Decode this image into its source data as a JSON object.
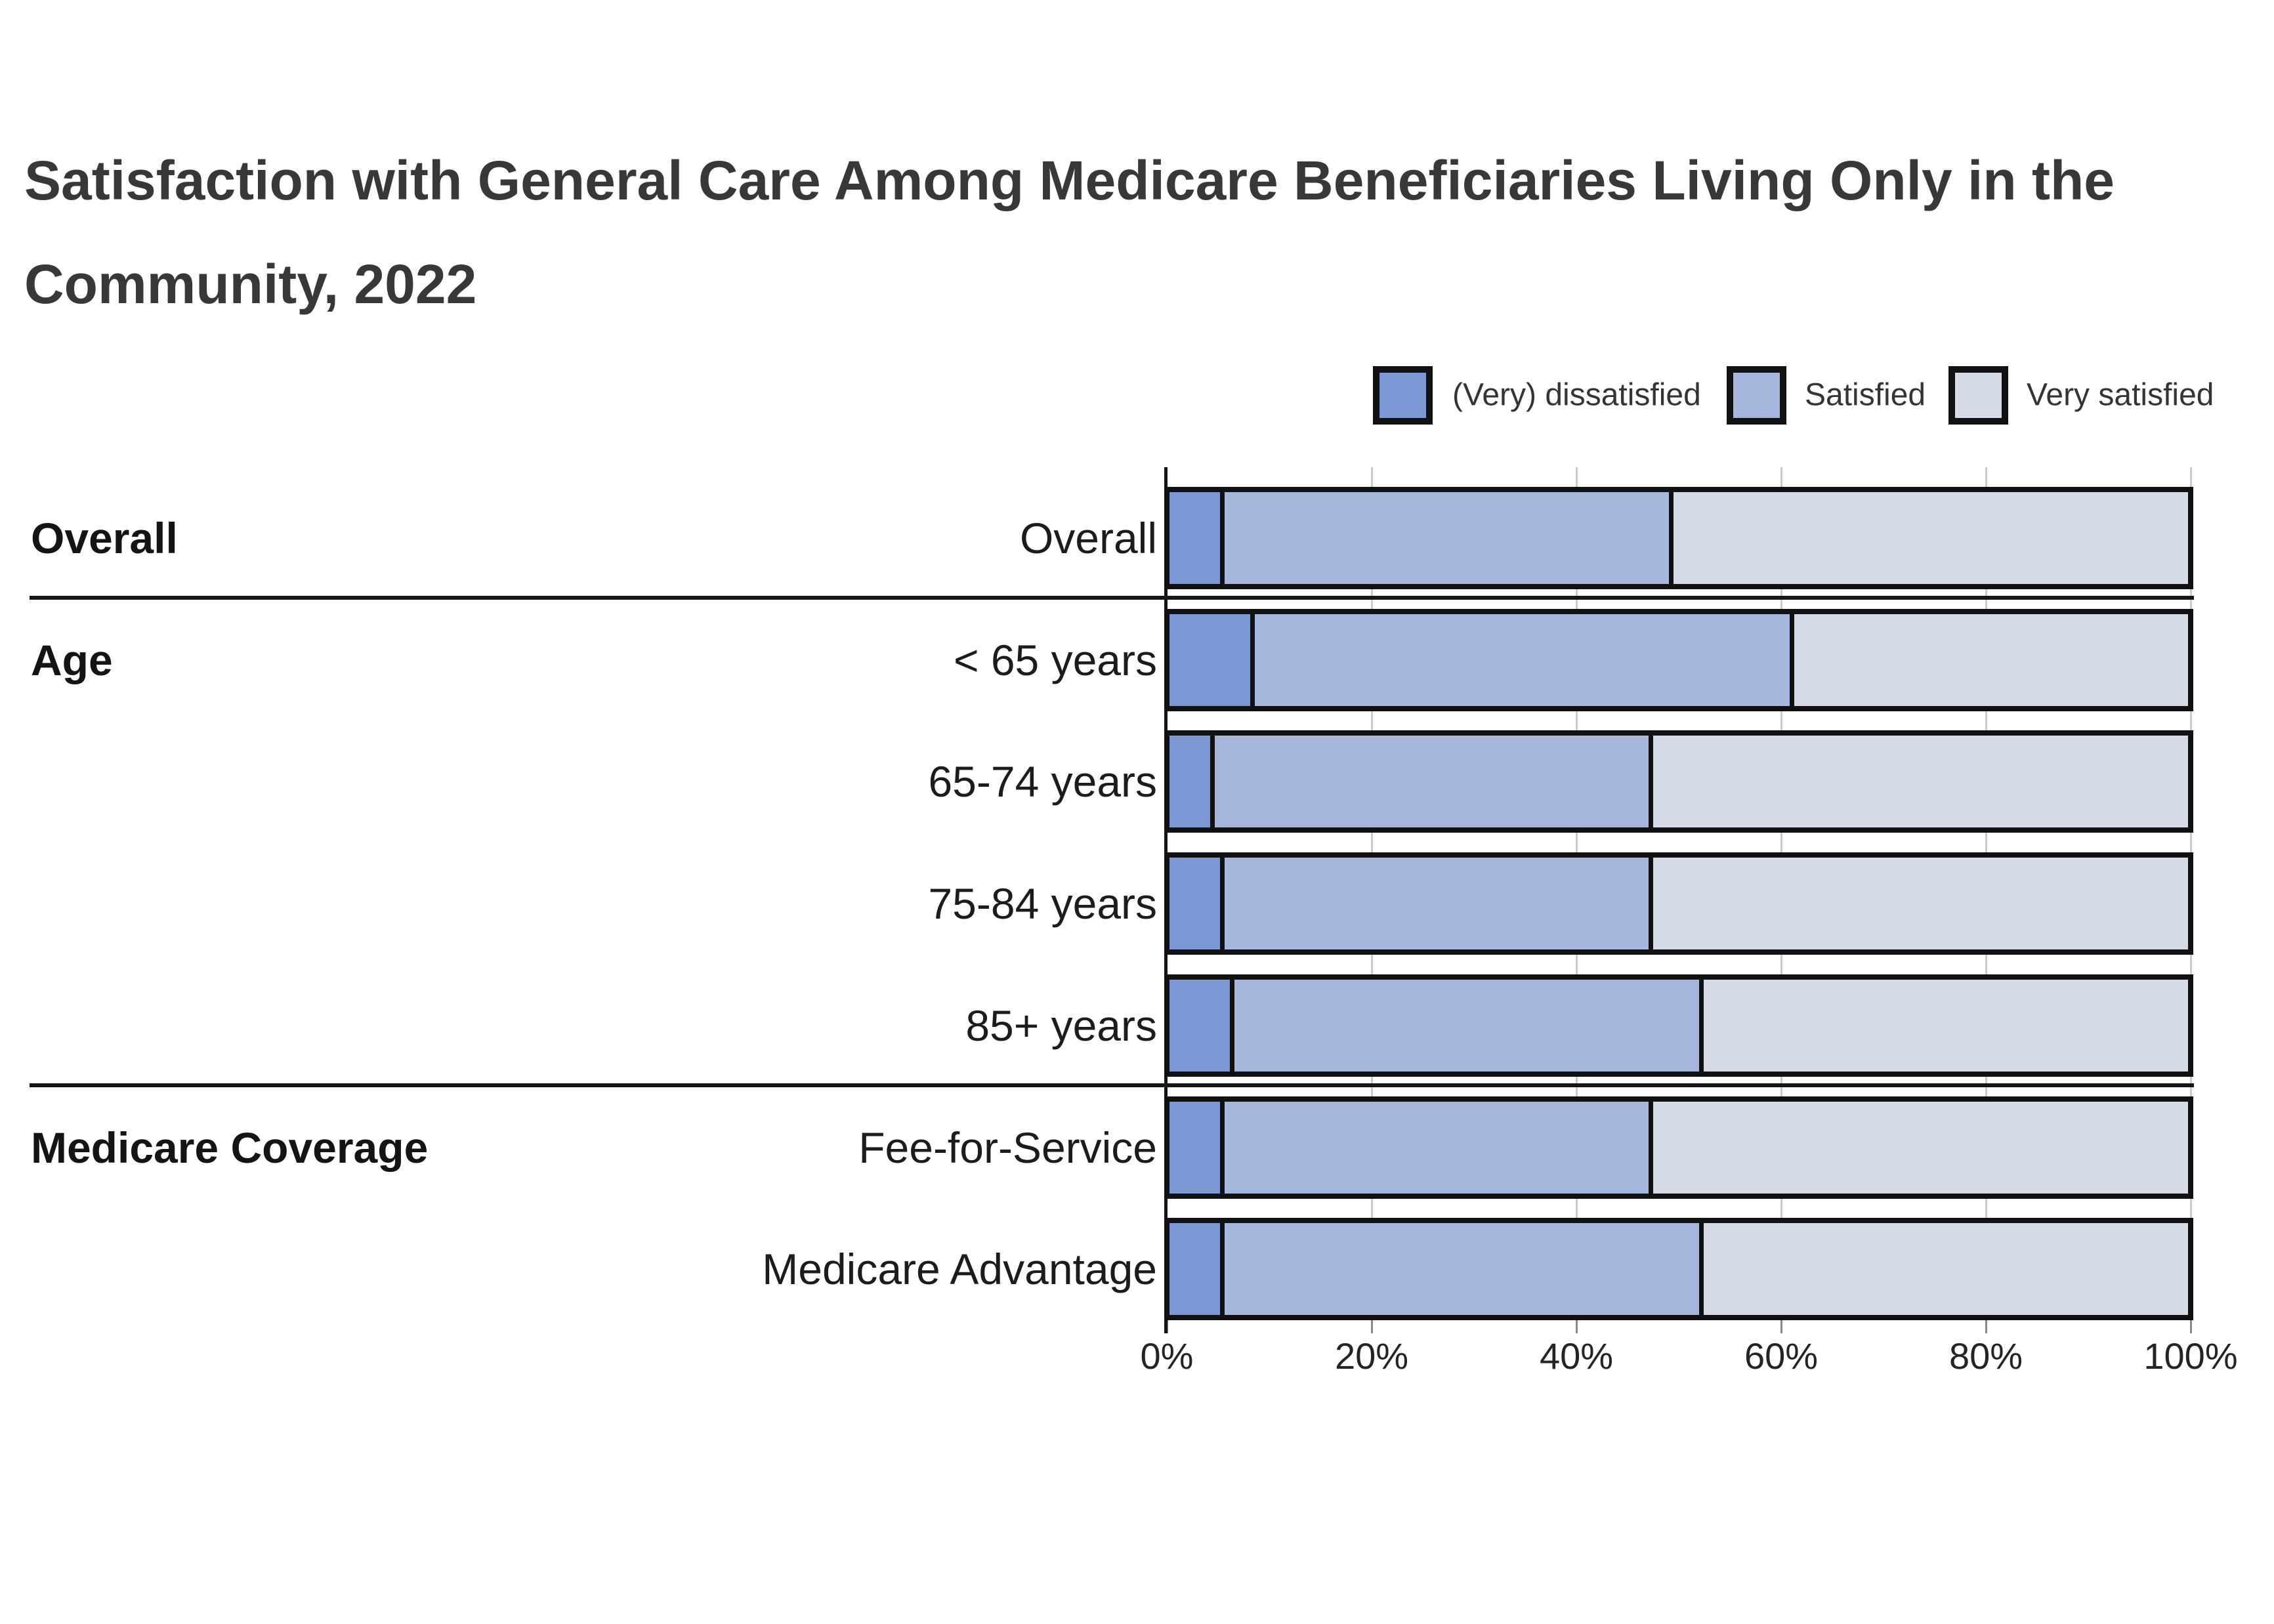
{
  "title": {
    "line1": "Satisfaction with General Care Among Medicare Beneficiaries Living Only in the",
    "line2": "Community, 2022"
  },
  "chart_data": {
    "type": "bar",
    "subtype": "horizontal-stacked",
    "title": "Satisfaction with General Care Among Medicare Beneficiaries Living Only in the Community, 2022",
    "unit": "percent",
    "categories": [
      "Overall",
      "< 65 years",
      "65-74 years",
      "75-84 years",
      "85+ years",
      "Fee-for-Service",
      "Medicare Advantage"
    ],
    "groups": [
      {
        "label": "Overall",
        "categories": [
          "Overall"
        ]
      },
      {
        "label": "Age",
        "categories": [
          "< 65 years",
          "65-74 years",
          "75-84 years",
          "85+ years"
        ]
      },
      {
        "label": "Medicare Coverage",
        "categories": [
          "Fee-for-Service",
          "Medicare Advantage"
        ]
      }
    ],
    "series": [
      {
        "name": "(Very) dissatisfied",
        "color": "#7B97D4",
        "values": [
          5,
          8,
          4,
          5,
          6,
          5,
          5
        ]
      },
      {
        "name": "Satisfied",
        "color": "#A5B7DC",
        "values": [
          44,
          53,
          43,
          42,
          46,
          42,
          47
        ]
      },
      {
        "name": "Very satisfied",
        "color": "#D5DBE6",
        "values": [
          51,
          39,
          53,
          53,
          48,
          53,
          48
        ]
      }
    ],
    "x_axis": {
      "tick_labels": [
        "0%",
        "20%",
        "40%",
        "60%",
        "80%",
        "100%"
      ],
      "tick_values": [
        0,
        20,
        40,
        60,
        80,
        100
      ],
      "range": [
        0,
        100
      ]
    },
    "legend_position": "top-right",
    "gridlines": "vertical",
    "bar_outline_color": "#111111",
    "gridline_color": "#cccccc"
  }
}
